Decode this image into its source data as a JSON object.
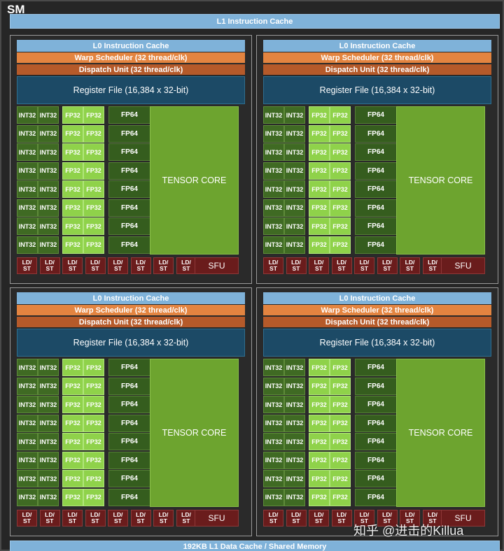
{
  "sm": {
    "label": "SM",
    "l1_instruction_cache": "L1 Instruction Cache",
    "l1_data_cache": "192KB L1 Data Cache / Shared Memory"
  },
  "partition": {
    "l0_instruction_cache": "L0 Instruction Cache",
    "warp_scheduler": "Warp Scheduler (32 thread/clk)",
    "dispatch_unit": "Dispatch Unit (32 thread/clk)",
    "register_file": "Register File (16,384 x 32-bit)",
    "int32_label": "INT32",
    "fp32_label": "FP32",
    "fp64_label": "FP64",
    "tensor_core": "TENSOR CORE",
    "ldst_line1": "LD/",
    "ldst_line2": "ST",
    "sfu": "SFU",
    "rows_per_partition": 8,
    "ldst_units_per_partition": 8
  },
  "partition_count": 4,
  "watermark": "知乎 @进击的Killua",
  "colors": {
    "background": "#262626",
    "cache_blue": "#7fb2d9",
    "warp_orange": "#e38440",
    "dispatch_brown": "#b55a2a",
    "register_file": "#1c4a66",
    "int32": "#3f6a23",
    "fp32": "#8fd24a",
    "fp64": "#355d1e",
    "tensor_core": "#6da42f",
    "ldst_sfu": "#6a1c1c"
  }
}
